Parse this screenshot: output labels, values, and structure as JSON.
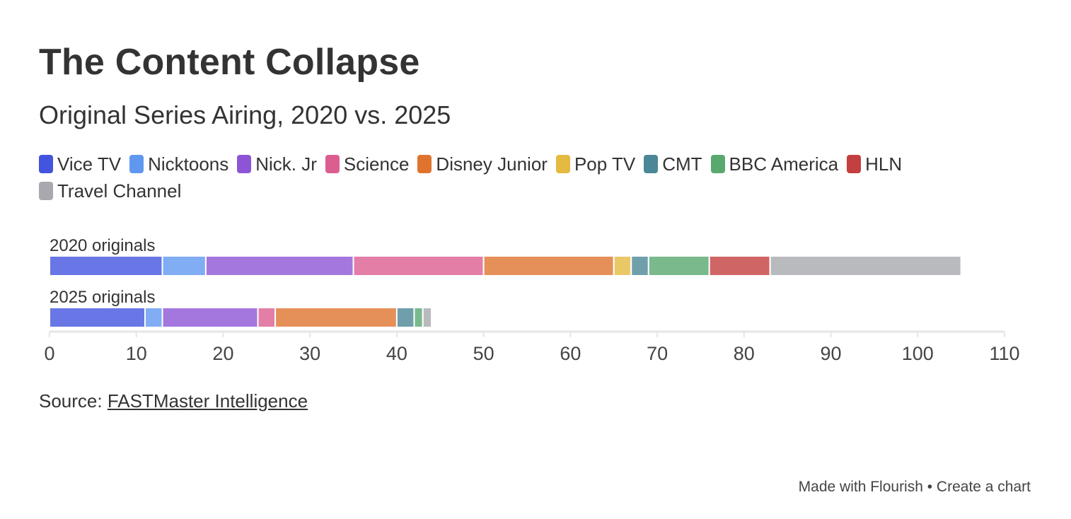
{
  "chart_data": {
    "type": "bar",
    "orientation": "horizontal",
    "stacked": true,
    "title": "The Content Collapse",
    "subtitle": "Original Series Airing, 2020 vs. 2025",
    "categories": [
      "2020 originals",
      "2025 originals"
    ],
    "series": [
      {
        "name": "Vice TV",
        "color": "#4354de",
        "values": [
          13,
          11
        ]
      },
      {
        "name": "Nicktoons",
        "color": "#6098f0",
        "values": [
          5,
          2
        ]
      },
      {
        "name": "Nick. Jr",
        "color": "#8d55d6",
        "values": [
          17,
          11
        ]
      },
      {
        "name": "Science",
        "color": "#dc5e91",
        "values": [
          15,
          2
        ]
      },
      {
        "name": "Disney Junior",
        "color": "#e0742f",
        "values": [
          15,
          14
        ]
      },
      {
        "name": "Pop TV",
        "color": "#e5ba40",
        "values": [
          2,
          0
        ]
      },
      {
        "name": "CMT",
        "color": "#4b8796",
        "values": [
          2,
          2
        ]
      },
      {
        "name": "BBC America",
        "color": "#59a86f",
        "values": [
          7,
          1
        ]
      },
      {
        "name": "HLN",
        "color": "#c43f3f",
        "values": [
          7,
          0
        ]
      },
      {
        "name": "Travel Channel",
        "color": "#a7a9ae",
        "values": [
          22,
          1
        ]
      }
    ],
    "xlim": [
      0,
      110
    ],
    "xticks": [
      "0",
      "10",
      "20",
      "30",
      "40",
      "50",
      "60",
      "70",
      "80",
      "90",
      "100",
      "110"
    ],
    "tick_values": [
      0,
      10,
      20,
      30,
      40,
      50,
      60,
      70,
      80,
      90,
      100,
      110
    ],
    "xlabel": "",
    "ylabel": "",
    "grid": false,
    "legend_position": "top"
  },
  "source": {
    "prefix": "Source: ",
    "link_text": "FASTMaster Intelligence"
  },
  "footer": {
    "text": "Made with Flourish • Create a chart"
  }
}
